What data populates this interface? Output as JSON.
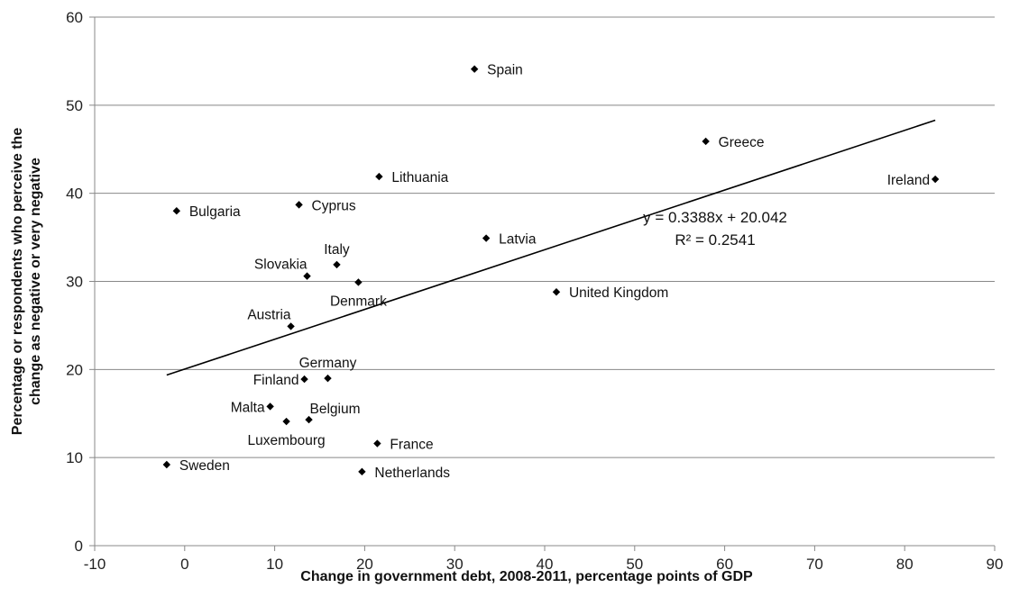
{
  "chart_data": {
    "type": "scatter",
    "xlabel": "Change in government debt, 2008-2011, percentage points of GDP",
    "ylabel": "Percentage or respondents who perceive the change as negative or very negative",
    "ylabel_lines": [
      "Percentage or respondents who perceive the",
      "change as negative or very negative"
    ],
    "xlim": [
      -10,
      90
    ],
    "ylim": [
      0,
      60
    ],
    "xticks": [
      -10,
      0,
      10,
      20,
      30,
      40,
      50,
      60,
      70,
      80,
      90
    ],
    "yticks": [
      0,
      10,
      20,
      30,
      40,
      50,
      60
    ],
    "grid": "horizontal",
    "marker_color": "#000000",
    "points": [
      {
        "label": "Spain",
        "x": 32.2,
        "y": 54.1,
        "pos": "right"
      },
      {
        "label": "Greece",
        "x": 57.9,
        "y": 45.9,
        "pos": "right"
      },
      {
        "label": "Lithuania",
        "x": 21.6,
        "y": 41.9,
        "pos": "right"
      },
      {
        "label": "Ireland",
        "x": 83.4,
        "y": 41.6,
        "pos": "left"
      },
      {
        "label": "Bulgaria",
        "x": -0.9,
        "y": 38.0,
        "pos": "right"
      },
      {
        "label": "Cyprus",
        "x": 12.7,
        "y": 38.7,
        "pos": "right"
      },
      {
        "label": "Latvia",
        "x": 33.5,
        "y": 34.9,
        "pos": "right"
      },
      {
        "label": "Italy",
        "x": 16.9,
        "y": 31.9,
        "pos": "above"
      },
      {
        "label": "Slovakia",
        "x": 13.6,
        "y": 30.6,
        "pos": "left-above"
      },
      {
        "label": "Denmark",
        "x": 19.3,
        "y": 29.9,
        "pos": "below"
      },
      {
        "label": "United Kingdom",
        "x": 41.3,
        "y": 28.8,
        "pos": "right"
      },
      {
        "label": "Austria",
        "x": 11.8,
        "y": 24.9,
        "pos": "left-above"
      },
      {
        "label": "Germany",
        "x": 15.9,
        "y": 19.0,
        "pos": "above"
      },
      {
        "label": "Finland",
        "x": 13.3,
        "y": 18.9,
        "pos": "left"
      },
      {
        "label": "Malta",
        "x": 9.5,
        "y": 15.8,
        "pos": "left"
      },
      {
        "label": "Belgium",
        "x": 13.8,
        "y": 14.3,
        "pos": "right-above"
      },
      {
        "label": "Luxembourg",
        "x": 11.3,
        "y": 14.1,
        "pos": "below"
      },
      {
        "label": "France",
        "x": 21.4,
        "y": 11.6,
        "pos": "right"
      },
      {
        "label": "Sweden",
        "x": -2.0,
        "y": 9.2,
        "pos": "right"
      },
      {
        "label": "Netherlands",
        "x": 19.7,
        "y": 8.4,
        "pos": "right"
      }
    ],
    "trendline": {
      "slope": 0.3388,
      "intercept": 20.042,
      "x_range": [
        -2.0,
        83.4
      ],
      "equation": "y = 0.3388x + 20.042",
      "r_squared": "R² = 0.2541"
    }
  }
}
